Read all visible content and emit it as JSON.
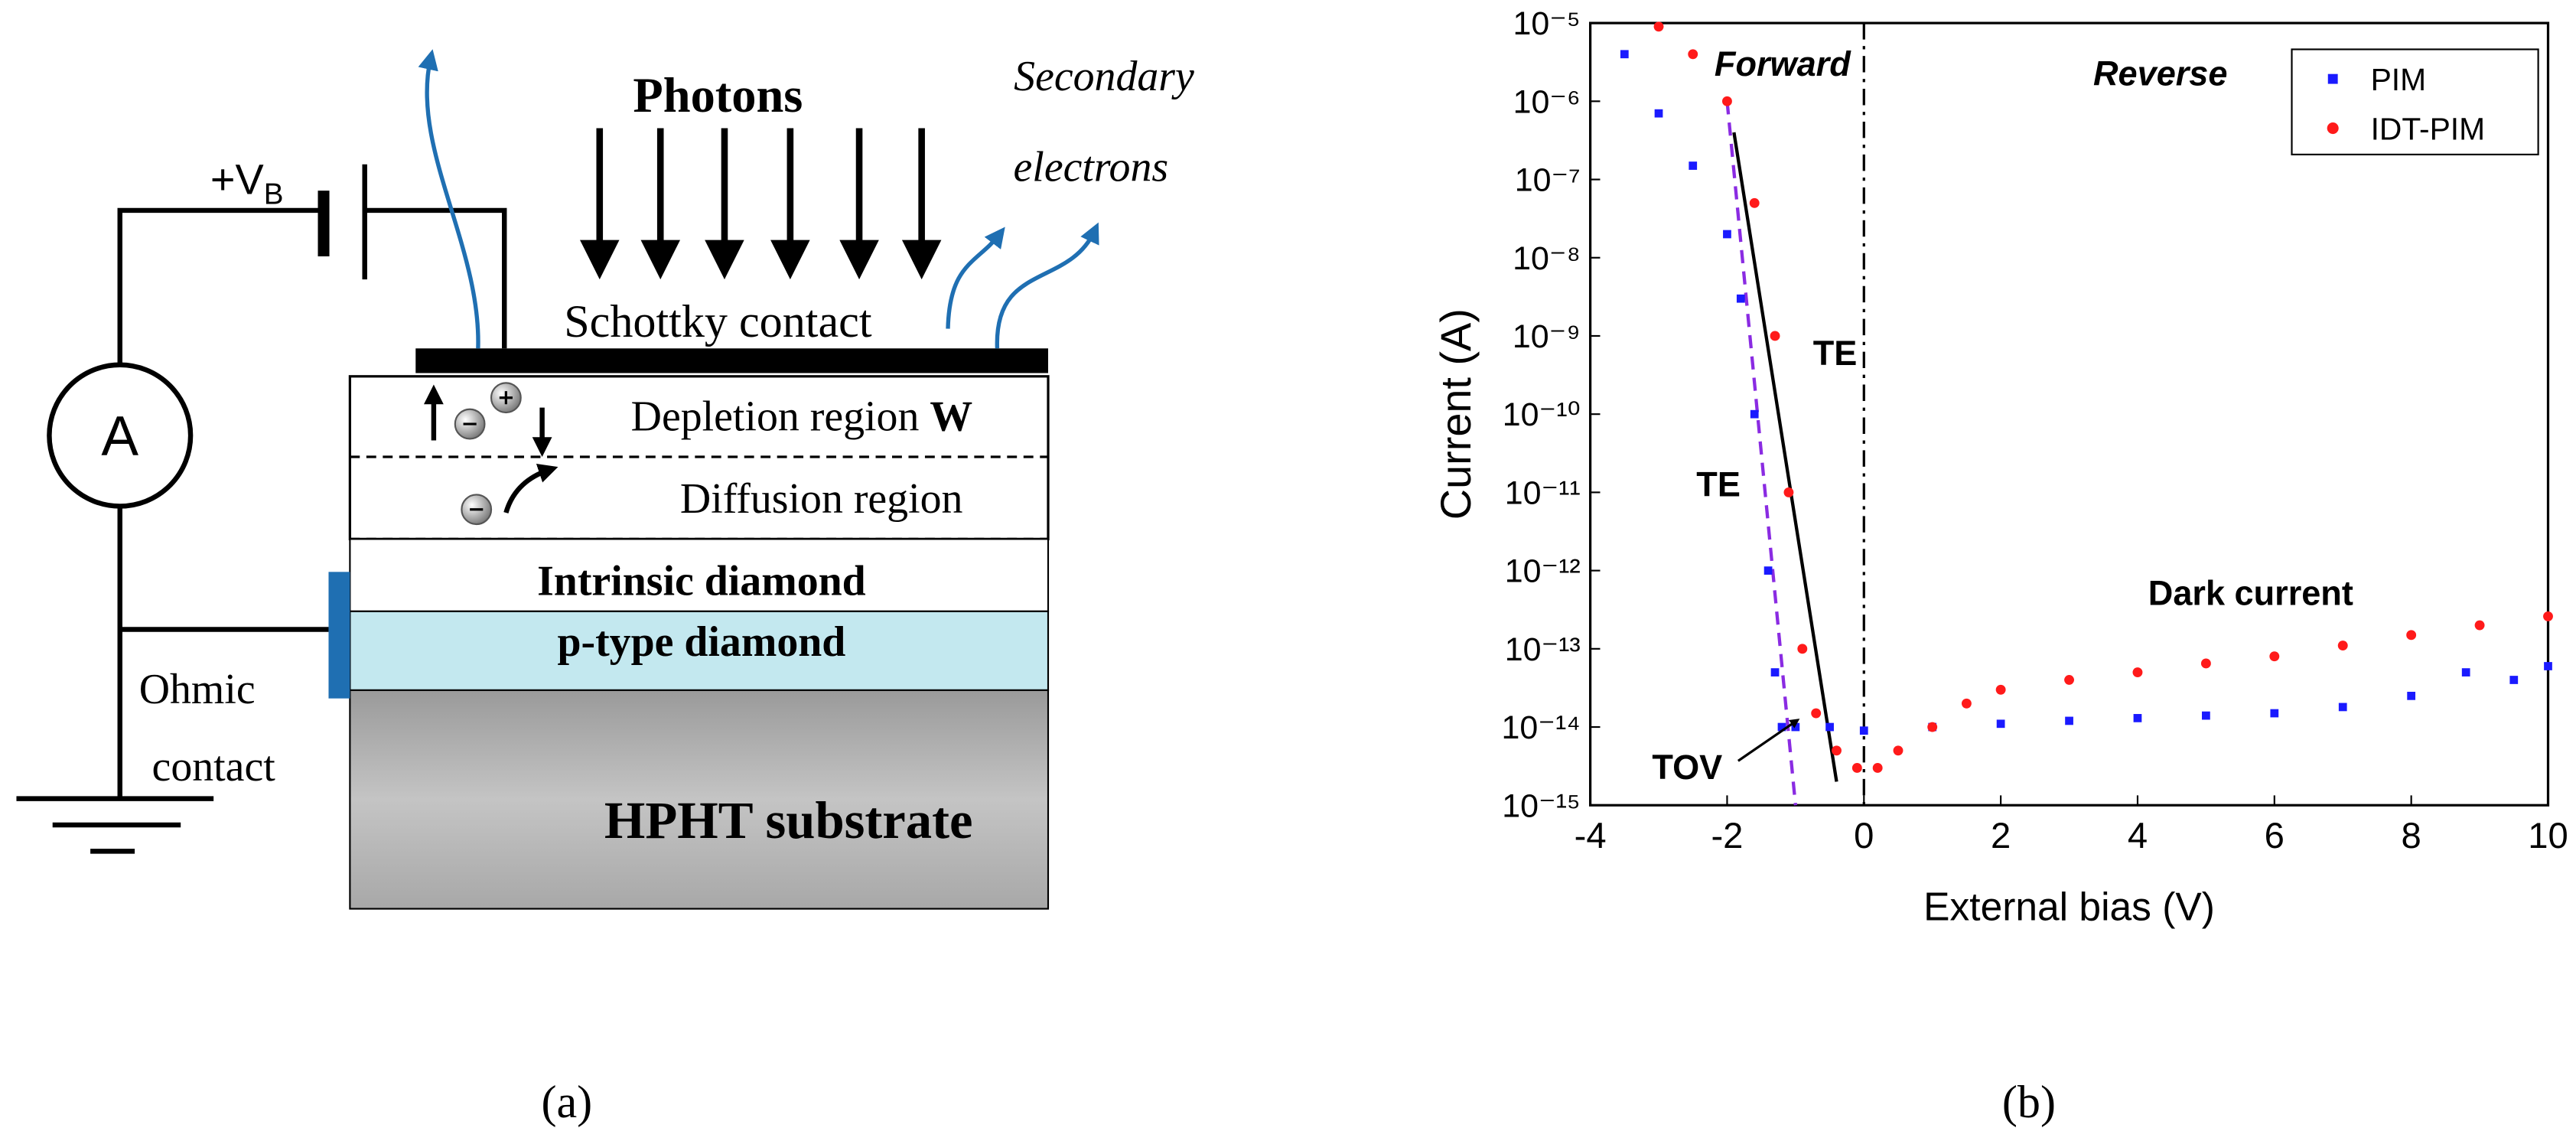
{
  "figure": {
    "caption_a": "(a)",
    "caption_b": "(b)"
  },
  "diagram": {
    "photons": "Photons",
    "secondary_1": "Secondary",
    "secondary_2": "electrons",
    "bias": "+V",
    "bias_sub": "B",
    "ammeter": "A",
    "schottky": "Schottky contact",
    "depletion": "Depletion region ",
    "depletion_w": "W",
    "diffusion": "Diffusion region",
    "intrinsic": "Intrinsic diamond",
    "ptype": "p-type diamond",
    "ohmic_1": "Ohmic",
    "ohmic_2": "contact",
    "substrate": "HPHT substrate"
  },
  "chart_data": {
    "type": "scatter",
    "xlabel": "External bias (V)",
    "ylabel": "Current (A)",
    "log_y": true,
    "legend": "upper right",
    "xlim": [
      -4,
      10
    ],
    "xticks": [
      -4,
      -2,
      0,
      2,
      4,
      6,
      8,
      10
    ],
    "ylim": [
      1e-15,
      1e-05
    ],
    "yticks": [
      {
        "value": 1e-15,
        "label": "10⁻¹⁵"
      },
      {
        "value": 1e-14,
        "label": "10⁻¹⁴"
      },
      {
        "value": 1e-13,
        "label": "10⁻¹³"
      },
      {
        "value": 1e-12,
        "label": "10⁻¹²"
      },
      {
        "value": 1e-11,
        "label": "10⁻¹¹"
      },
      {
        "value": 1e-10,
        "label": "10⁻¹⁰"
      },
      {
        "value": 1e-09,
        "label": "10⁻⁹"
      },
      {
        "value": 1e-08,
        "label": "10⁻⁸"
      },
      {
        "value": 1e-07,
        "label": "10⁻⁷"
      },
      {
        "value": 1e-06,
        "label": "10⁻⁶"
      },
      {
        "value": 1e-05,
        "label": "10⁻⁵"
      }
    ],
    "series": [
      {
        "name": "PIM",
        "color": "#1a1aff",
        "marker": "square",
        "x": [
          -3.5,
          -3.0,
          -2.5,
          -2.0,
          -1.8,
          -1.6,
          -1.4,
          -1.3,
          -1.2,
          -1.0,
          -0.5,
          0,
          1,
          2,
          3,
          4,
          5,
          6,
          7,
          8,
          8.8,
          9.5,
          10
        ],
        "values": [
          4e-06,
          7e-07,
          1.5e-07,
          2e-08,
          3e-09,
          1e-10,
          1e-12,
          5e-14,
          1e-14,
          1e-14,
          1e-14,
          9e-15,
          1e-14,
          1.1e-14,
          1.2e-14,
          1.3e-14,
          1.4e-14,
          1.5e-14,
          1.8e-14,
          2.5e-14,
          5e-14,
          4e-14,
          6e-14
        ]
      },
      {
        "name": "IDT-PIM",
        "color": "#ff1a1a",
        "marker": "circle",
        "x": [
          -3.0,
          -2.5,
          -2.0,
          -1.6,
          -1.3,
          -1.1,
          -0.9,
          -0.7,
          -0.4,
          -0.1,
          0.2,
          0.5,
          1,
          1.5,
          2,
          3,
          4,
          5,
          6,
          7,
          8,
          9,
          10
        ],
        "values": [
          9e-06,
          4e-06,
          1e-06,
          5e-08,
          1e-09,
          1e-11,
          1e-13,
          1.5e-14,
          5e-15,
          3e-15,
          3e-15,
          5e-15,
          1e-14,
          2e-14,
          3e-14,
          4e-14,
          5e-14,
          6.5e-14,
          8e-14,
          1.1e-13,
          1.5e-13,
          2e-13,
          2.6e-13
        ]
      }
    ],
    "reference_lines": [
      {
        "x": [
          -1.9,
          -0.4
        ],
        "y": [
          4e-07,
          2e-15
        ],
        "color": "#000000",
        "dash": "none"
      },
      {
        "x": [
          -2.0,
          -1.0
        ],
        "y": [
          1e-06,
          1e-15
        ],
        "color": "#8a2be2",
        "dash": "8 5"
      }
    ],
    "vline": {
      "x": 0,
      "color": "#000000",
      "dash": "10 4 2 4"
    },
    "annotations": [
      "Forward",
      "Reverse",
      "TE",
      "TE",
      "TOV",
      "Dark current"
    ]
  }
}
